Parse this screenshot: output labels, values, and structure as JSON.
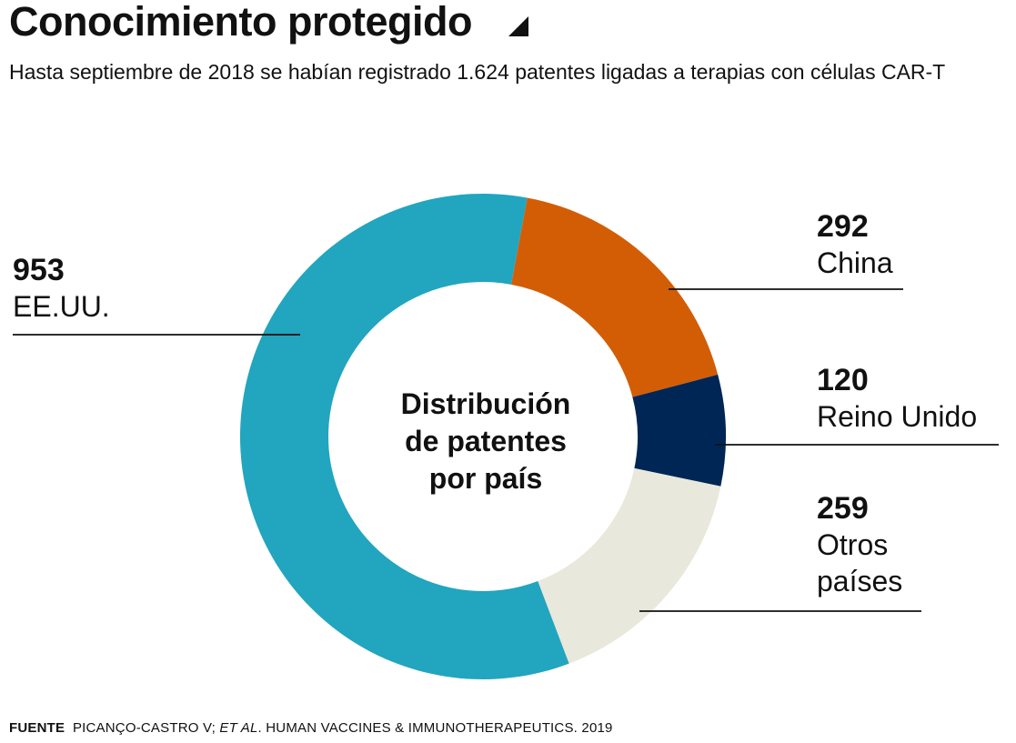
{
  "title": "Conocimiento protegido",
  "subtitle": "Hasta septiembre de 2018 se habían registrado 1.624 patentes ligadas a terapias con células CAR-T",
  "center_label": "Distribución\nde patentes\npor país",
  "source": {
    "label": "FUENTE",
    "authors": "PICANÇO-CASTRO V;",
    "etal": "ET AL",
    "dot": ".",
    "journal": "HUMAN VACCINES & IMMUNOTHERAPEUTICS",
    "year": ". 2019"
  },
  "chart_data": {
    "type": "pie",
    "donut": true,
    "title": "Conocimiento protegido",
    "slices": [
      {
        "label": "China",
        "value": 292,
        "value_text": "292",
        "color": "#d35d05"
      },
      {
        "label": "Reino Unido",
        "value": 120,
        "value_text": "120",
        "color": "#002656"
      },
      {
        "label": "Otros\npaíses",
        "value": 259,
        "value_text": "259",
        "color": "#e8e8dc"
      },
      {
        "label": "EE.UU.",
        "value": 953,
        "value_text": "953",
        "color": "#22a5bf"
      }
    ],
    "start_angle_deg": 10.5,
    "direction": "clockwise"
  }
}
